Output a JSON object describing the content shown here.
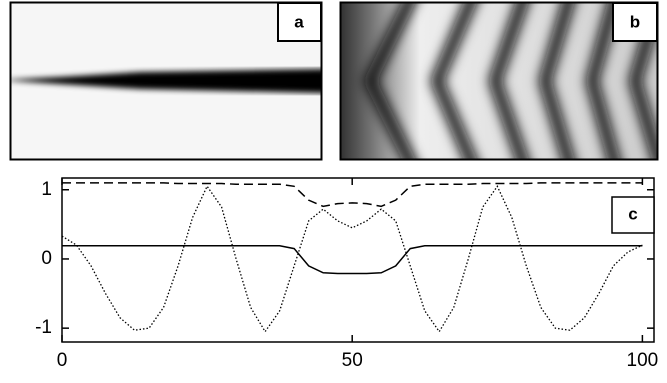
{
  "panels": [
    {
      "label": "a"
    },
    {
      "label": "b"
    }
  ],
  "chart_data": {
    "type": "line",
    "label": "c",
    "x": [
      0,
      2.5,
      5,
      7.5,
      10,
      12.5,
      15,
      17.5,
      20,
      22.5,
      25,
      27.5,
      30,
      32.5,
      35,
      37.5,
      40,
      42.5,
      45,
      47.5,
      50,
      52.5,
      55,
      57.5,
      60,
      62.5,
      65,
      67.5,
      70,
      72.5,
      75,
      77.5,
      80,
      82.5,
      85,
      87.5,
      90,
      92.5,
      95,
      97.5,
      100
    ],
    "xlim": [
      0,
      102
    ],
    "xticks": [
      0,
      50,
      100
    ],
    "ylim": [
      -1.2,
      1.17
    ],
    "yticks": [
      -1,
      0,
      1
    ],
    "series": [
      {
        "color": "#000000",
        "style": "dashed",
        "values": [
          1.1,
          1.1,
          1.1,
          1.1,
          1.1,
          1.1,
          1.1,
          1.1,
          1.09,
          1.09,
          1.09,
          1.09,
          1.08,
          1.08,
          1.08,
          1.08,
          1.05,
          0.85,
          0.76,
          0.8,
          0.81,
          0.8,
          0.76,
          0.85,
          1.05,
          1.08,
          1.08,
          1.08,
          1.08,
          1.09,
          1.09,
          1.09,
          1.09,
          1.1,
          1.1,
          1.1,
          1.1,
          1.1,
          1.1,
          1.1,
          1.1
        ]
      },
      {
        "color": "#000000",
        "style": "dotted",
        "values": [
          0.33,
          0.2,
          -0.1,
          -0.5,
          -0.85,
          -1.03,
          -1.0,
          -0.7,
          -0.1,
          0.6,
          1.05,
          0.75,
          0.0,
          -0.7,
          -1.05,
          -0.75,
          -0.1,
          0.55,
          0.72,
          0.55,
          0.45,
          0.55,
          0.72,
          0.55,
          -0.1,
          -0.75,
          -1.05,
          -0.7,
          0.0,
          0.75,
          1.05,
          0.6,
          -0.1,
          -0.7,
          -1.0,
          -1.03,
          -0.85,
          -0.5,
          -0.1,
          0.1,
          0.2
        ]
      },
      {
        "color": "#000000",
        "style": "solid",
        "values": [
          0.19,
          0.19,
          0.19,
          0.19,
          0.19,
          0.19,
          0.19,
          0.19,
          0.19,
          0.19,
          0.19,
          0.19,
          0.19,
          0.19,
          0.19,
          0.19,
          0.15,
          -0.1,
          -0.2,
          -0.21,
          -0.21,
          -0.21,
          -0.2,
          -0.1,
          0.15,
          0.19,
          0.19,
          0.19,
          0.19,
          0.19,
          0.19,
          0.19,
          0.19,
          0.19,
          0.19,
          0.19,
          0.19,
          0.19,
          0.19,
          0.19,
          0.19
        ]
      }
    ]
  }
}
